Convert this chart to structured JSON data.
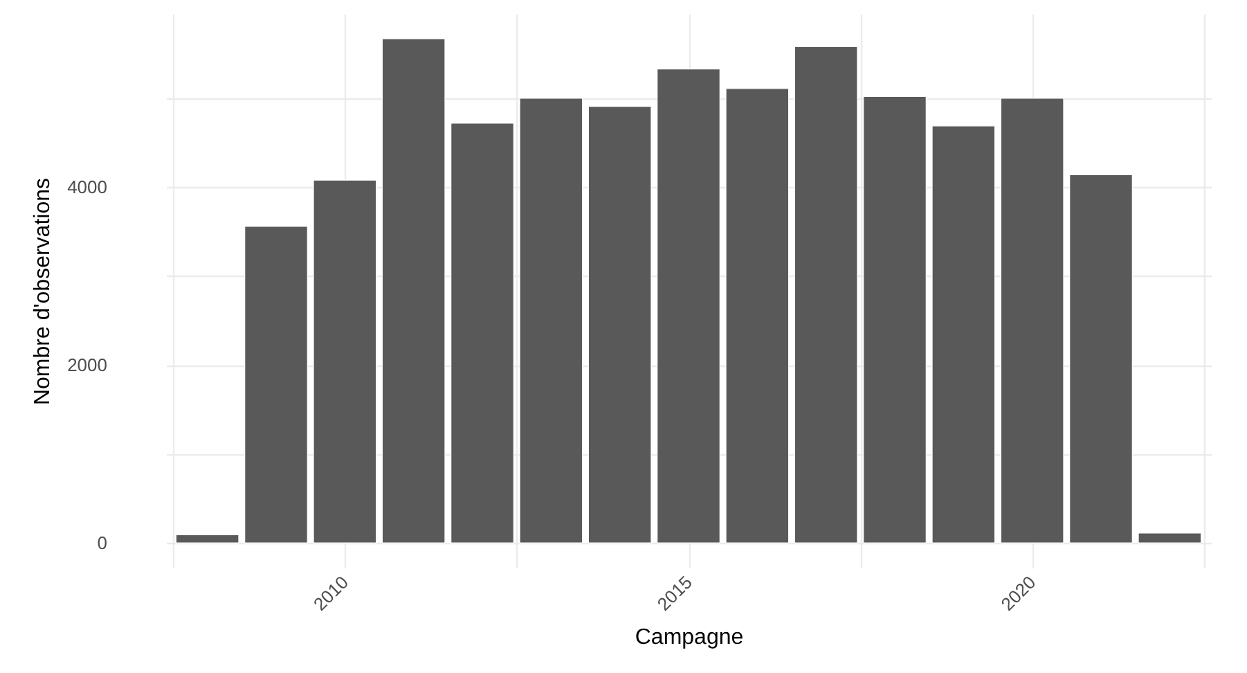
{
  "chart_data": {
    "type": "bar",
    "xlabel": "Campagne",
    "ylabel": "Nombre d'observations",
    "x": [
      2008,
      2009,
      2010,
      2011,
      2012,
      2013,
      2014,
      2015,
      2016,
      2017,
      2018,
      2019,
      2020,
      2021,
      2022
    ],
    "series": [
      {
        "color": "#595959",
        "values": [
          90,
          3560,
          4080,
          5670,
          4720,
          5000,
          4910,
          5330,
          5110,
          5580,
          5020,
          4690,
          5000,
          4140,
          110
        ]
      }
    ],
    "xlim": [
      2007.5,
      2022.5
    ],
    "xticks": [
      {
        "value": 2007.5,
        "label": null
      },
      2010,
      {
        "value": 2012.5,
        "label": null
      },
      2015,
      {
        "value": 2017.5,
        "label": null
      },
      2020,
      {
        "value": 2022.5,
        "label": null
      }
    ],
    "ylim": [
      -280,
      5950
    ],
    "yticks": [
      0,
      {
        "value": 1000,
        "label": null
      },
      2000,
      {
        "value": 3000,
        "label": null
      },
      4000,
      {
        "value": 5000,
        "label": null
      }
    ],
    "grid": true
  }
}
